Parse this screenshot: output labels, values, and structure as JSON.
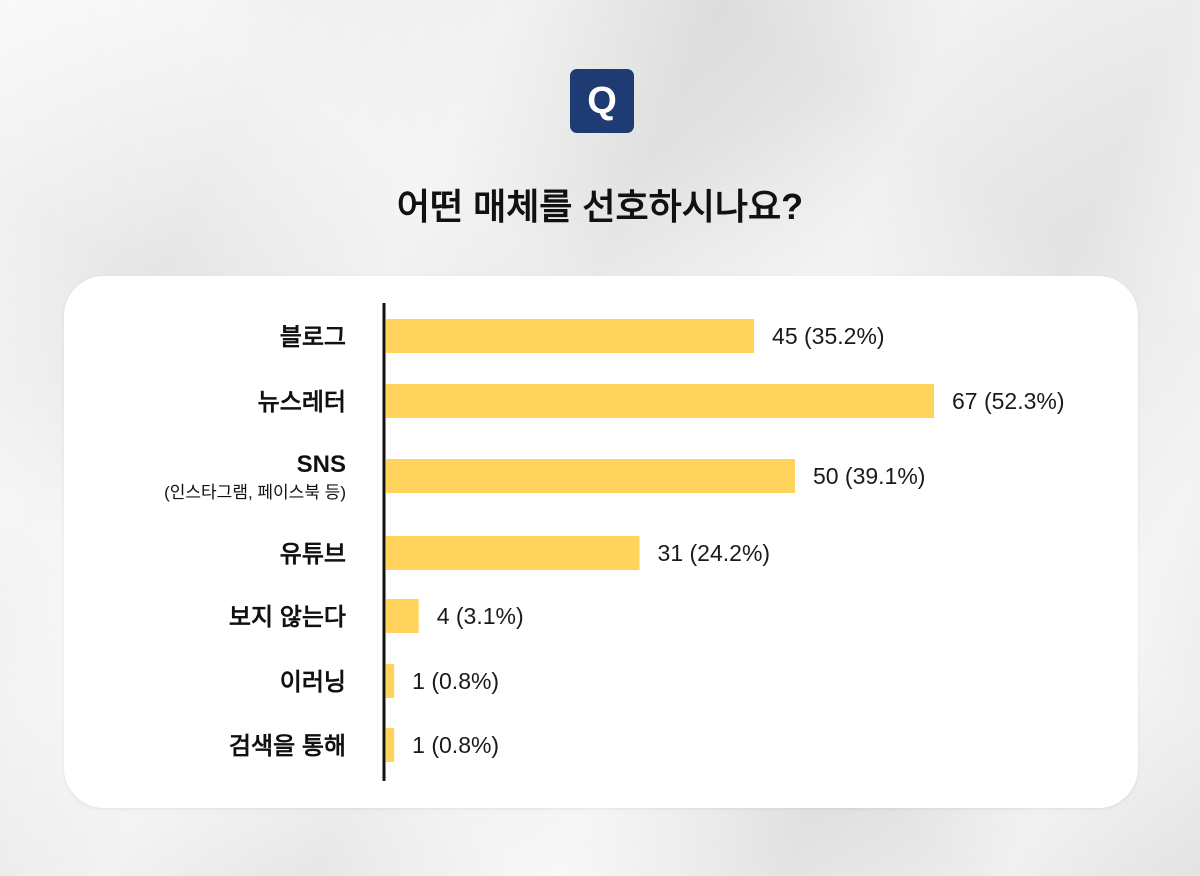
{
  "badge": {
    "label": "Q"
  },
  "title": "어떤 매체를 선호하시나요?",
  "colors": {
    "bar": "#FFD35C",
    "badge": "#1F3B73",
    "axis": "#111111"
  },
  "chart_data": {
    "type": "bar",
    "orientation": "horizontal",
    "title": "어떤 매체를 선호하시나요?",
    "categories": [
      {
        "label": "블로그",
        "sublabel": ""
      },
      {
        "label": "뉴스레터",
        "sublabel": ""
      },
      {
        "label": "SNS",
        "sublabel": "(인스타그램, 페이스북 등)"
      },
      {
        "label": "유튜브",
        "sublabel": ""
      },
      {
        "label": "보지 않는다",
        "sublabel": ""
      },
      {
        "label": "이러닝",
        "sublabel": ""
      },
      {
        "label": "검색을 통해",
        "sublabel": ""
      }
    ],
    "values": [
      45,
      67,
      50,
      31,
      4,
      1,
      1
    ],
    "value_labels": [
      "45 (35.2%)",
      "67 (52.3%)",
      "50 (39.1%)",
      "31 (24.2%)",
      "4 (3.1%)",
      "1 (0.8%)",
      "1 (0.8%)"
    ],
    "xlim": [
      0,
      67
    ],
    "grid": false,
    "legend": "none"
  }
}
